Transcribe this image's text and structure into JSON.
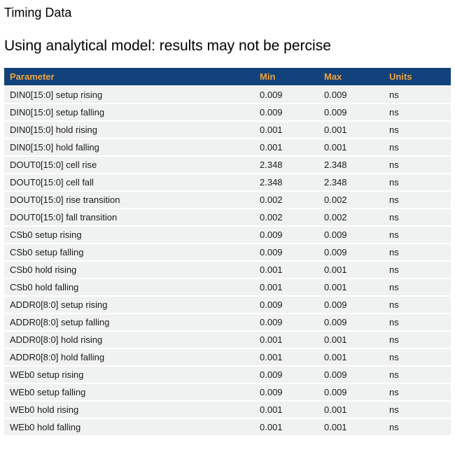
{
  "page": {
    "title": "Timing Data",
    "subtitle": "Using analytical model: results may not be percise"
  },
  "colors": {
    "header_bg": "#12427B",
    "header_text": "#EFA339",
    "row_bg": "#F0F1F1",
    "row_text": "#1A1A1A"
  },
  "table": {
    "columns": [
      {
        "key": "parameter",
        "label": "Parameter"
      },
      {
        "key": "min",
        "label": "Min"
      },
      {
        "key": "max",
        "label": "Max"
      },
      {
        "key": "units",
        "label": "Units"
      }
    ],
    "rows": [
      {
        "parameter": "DIN0[15:0] setup rising",
        "min": "0.009",
        "max": "0.009",
        "units": "ns"
      },
      {
        "parameter": "DIN0[15:0] setup falling",
        "min": "0.009",
        "max": "0.009",
        "units": "ns"
      },
      {
        "parameter": "DIN0[15:0] hold rising",
        "min": "0.001",
        "max": "0.001",
        "units": "ns"
      },
      {
        "parameter": "DIN0[15:0] hold falling",
        "min": "0.001",
        "max": "0.001",
        "units": "ns"
      },
      {
        "parameter": "DOUT0[15:0] cell rise",
        "min": "2.348",
        "max": "2.348",
        "units": "ns"
      },
      {
        "parameter": "DOUT0[15:0] cell fall",
        "min": "2.348",
        "max": "2.348",
        "units": "ns"
      },
      {
        "parameter": "DOUT0[15:0] rise transition",
        "min": "0.002",
        "max": "0.002",
        "units": "ns"
      },
      {
        "parameter": "DOUT0[15:0] fall transition",
        "min": "0.002",
        "max": "0.002",
        "units": "ns"
      },
      {
        "parameter": "CSb0 setup rising",
        "min": "0.009",
        "max": "0.009",
        "units": "ns"
      },
      {
        "parameter": "CSb0 setup falling",
        "min": "0.009",
        "max": "0.009",
        "units": "ns"
      },
      {
        "parameter": "CSb0 hold rising",
        "min": "0.001",
        "max": "0.001",
        "units": "ns"
      },
      {
        "parameter": "CSb0 hold falling",
        "min": "0.001",
        "max": "0.001",
        "units": "ns"
      },
      {
        "parameter": "ADDR0[8:0] setup rising",
        "min": "0.009",
        "max": "0.009",
        "units": "ns"
      },
      {
        "parameter": "ADDR0[8:0] setup falling",
        "min": "0.009",
        "max": "0.009",
        "units": "ns"
      },
      {
        "parameter": "ADDR0[8:0] hold rising",
        "min": "0.001",
        "max": "0.001",
        "units": "ns"
      },
      {
        "parameter": "ADDR0[8:0] hold falling",
        "min": "0.001",
        "max": "0.001",
        "units": "ns"
      },
      {
        "parameter": "WEb0 setup rising",
        "min": "0.009",
        "max": "0.009",
        "units": "ns"
      },
      {
        "parameter": "WEb0 setup falling",
        "min": "0.009",
        "max": "0.009",
        "units": "ns"
      },
      {
        "parameter": "WEb0 hold rising",
        "min": "0.001",
        "max": "0.001",
        "units": "ns"
      },
      {
        "parameter": "WEb0 hold falling",
        "min": "0.001",
        "max": "0.001",
        "units": "ns"
      }
    ]
  }
}
